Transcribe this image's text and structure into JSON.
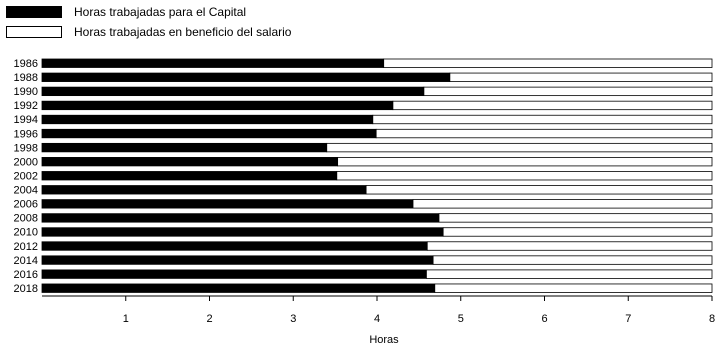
{
  "chart_data": {
    "type": "bar",
    "orientation": "horizontal",
    "stacked": true,
    "categories": [
      "1986",
      "1988",
      "1990",
      "1992",
      "1994",
      "1996",
      "1998",
      "2000",
      "2002",
      "2004",
      "2006",
      "2008",
      "2010",
      "2012",
      "2014",
      "2016",
      "2018"
    ],
    "series": [
      {
        "name": "Horas trabajadas para el Capital",
        "color": "#000000",
        "values": [
          4.08,
          4.87,
          4.56,
          4.19,
          3.95,
          3.99,
          3.4,
          3.53,
          3.52,
          3.87,
          4.43,
          4.74,
          4.79,
          4.6,
          4.67,
          4.59,
          4.69
        ]
      },
      {
        "name": "Horas trabajadas en beneficio del salario",
        "color": "#ffffff",
        "values": [
          3.92,
          3.13,
          3.44,
          3.81,
          4.05,
          4.01,
          4.6,
          4.47,
          4.48,
          4.13,
          3.57,
          3.26,
          3.21,
          3.4,
          3.33,
          3.41,
          3.31
        ]
      }
    ],
    "xlabel": "Horas",
    "ylabel": "",
    "xlim": [
      0,
      8
    ],
    "xticks": [
      1,
      2,
      3,
      4,
      5,
      6,
      7,
      8
    ],
    "grid": false,
    "legend_position": "top-left"
  }
}
